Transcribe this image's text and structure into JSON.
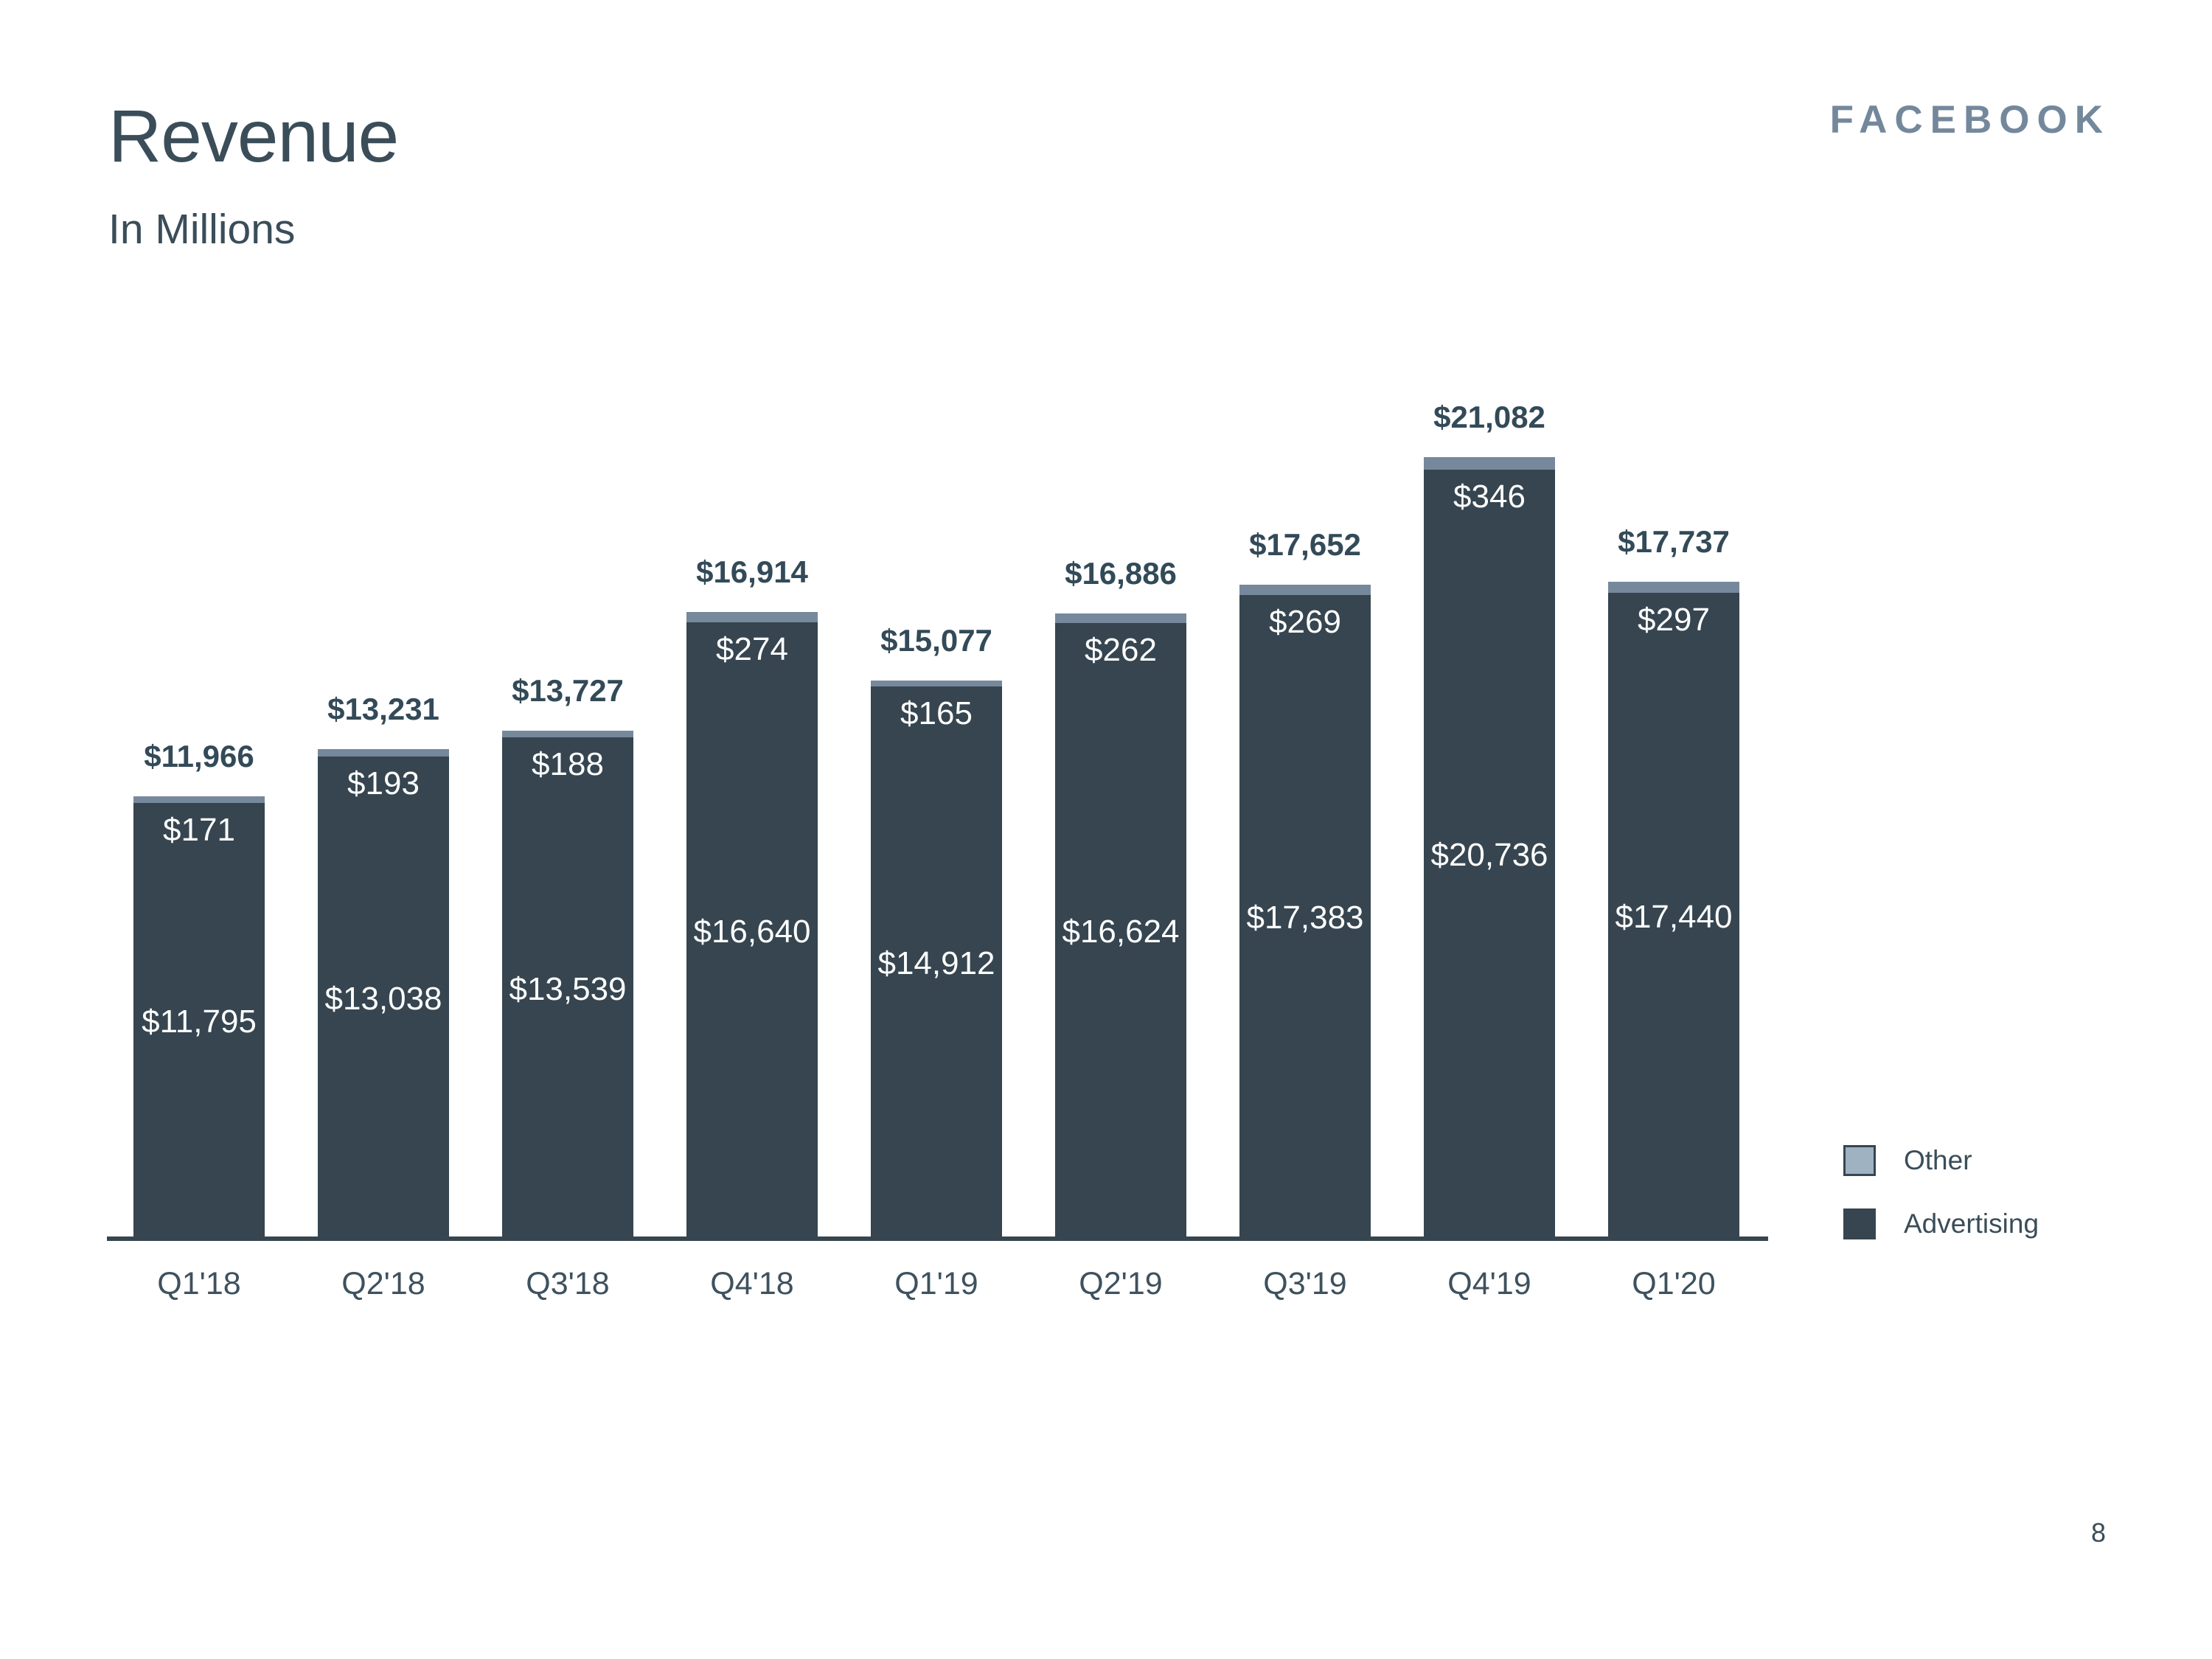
{
  "slide": {
    "title": "Revenue",
    "subtitle": "In Millions",
    "brand": "FACEBOOK",
    "page_number": "8"
  },
  "legend": {
    "items": [
      {
        "label": "Other",
        "swatch_color": "#9fb2c2"
      },
      {
        "label": "Advertising",
        "swatch_color": "#36454f"
      }
    ],
    "position": "right-bottom"
  },
  "colors": {
    "advertising_bar": "#36454f",
    "other_band": "#76889b",
    "other_legend_swatch": "#9fb2c2",
    "axis_line": "#36454f",
    "dark_text": "#3a4d59",
    "total_label_text": "#334a58",
    "brand_text": "#74889c",
    "inside_label_text": "#fdfefe",
    "background": "#ffffff"
  },
  "chart_data": {
    "type": "bar",
    "stacked": true,
    "title": "Revenue",
    "units_note": "In Millions",
    "xlabel": "",
    "ylabel": "",
    "grid": false,
    "y_axis_shown": false,
    "legend_position": "right-bottom",
    "categories": [
      "Q1'18",
      "Q2'18",
      "Q3'18",
      "Q4'18",
      "Q1'19",
      "Q2'19",
      "Q3'19",
      "Q4'19",
      "Q1'20"
    ],
    "series": [
      {
        "name": "Advertising",
        "values": [
          11795,
          13038,
          13539,
          16640,
          14912,
          16624,
          17383,
          20736,
          17440
        ]
      },
      {
        "name": "Other",
        "values": [
          171,
          193,
          188,
          274,
          165,
          262,
          269,
          346,
          297
        ]
      }
    ],
    "totals": [
      11966,
      13231,
      13727,
      16914,
      15077,
      16886,
      17652,
      21082,
      17737
    ],
    "totals_formatted": [
      "$11,966",
      "$13,231",
      "$13,727",
      "$16,914",
      "$15,077",
      "$16,886",
      "$17,652",
      "$21,082",
      "$17,737"
    ],
    "advertising_formatted": [
      "$11,795",
      "$13,038",
      "$13,539",
      "$16,640",
      "$14,912",
      "$16,624",
      "$17,383",
      "$20,736",
      "$17,440"
    ],
    "other_formatted": [
      "$171",
      "$193",
      "$188",
      "$274",
      "$165",
      "$262",
      "$269",
      "$346",
      "$297"
    ]
  }
}
